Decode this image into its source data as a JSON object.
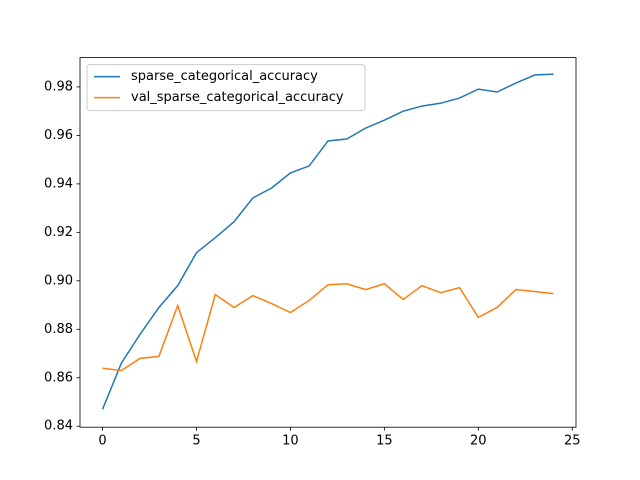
{
  "chart_data": {
    "type": "line",
    "x": [
      0,
      1,
      2,
      3,
      4,
      5,
      6,
      7,
      8,
      9,
      10,
      11,
      12,
      13,
      14,
      15,
      16,
      17,
      18,
      19,
      20,
      21,
      22,
      23,
      24
    ],
    "series": [
      {
        "name": "sparse_categorical_accuracy",
        "color": "#1f77b4",
        "values": [
          0.847,
          0.866,
          0.878,
          0.889,
          0.898,
          0.9116,
          0.9178,
          0.9244,
          0.9342,
          0.9383,
          0.9445,
          0.9474,
          0.9577,
          0.9585,
          0.963,
          0.9663,
          0.97,
          0.9721,
          0.9733,
          0.9754,
          0.9791,
          0.9779,
          0.9816,
          0.9849,
          0.9853
        ]
      },
      {
        "name": "val_sparse_categorical_accuracy",
        "color": "#ff7f0e",
        "values": [
          0.8639,
          0.863,
          0.868,
          0.8688,
          0.8898,
          0.8667,
          0.8943,
          0.889,
          0.8939,
          0.8906,
          0.8869,
          0.8919,
          0.8984,
          0.8988,
          0.8964,
          0.8988,
          0.8923,
          0.898,
          0.8951,
          0.8972,
          0.8849,
          0.889,
          0.8964,
          0.8956,
          0.8947
        ]
      }
    ],
    "xlim": [
      -1.2,
      25.2
    ],
    "xticks": [
      0,
      5,
      10,
      15,
      20,
      25
    ],
    "ylim": [
      0.8396,
      0.9921
    ],
    "yticks": [
      0.84,
      0.86,
      0.88,
      0.9,
      0.92,
      0.94,
      0.96,
      0.98
    ],
    "legend": "upper left"
  }
}
